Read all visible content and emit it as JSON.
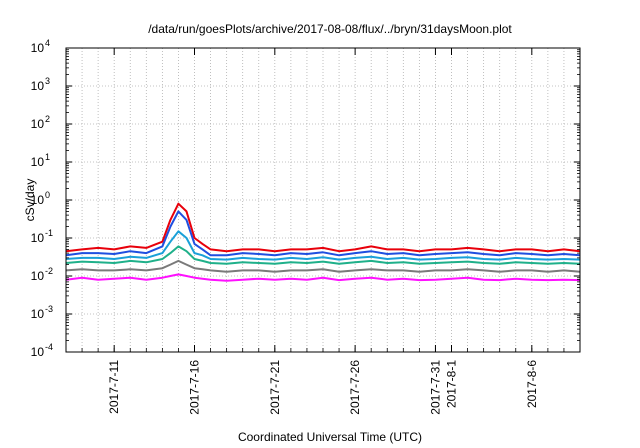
{
  "chart_data": {
    "type": "line",
    "title": "/data/run/goesPlots/archive/2017-08-08/flux/../bryn/31daysMoon.plot",
    "xlabel": "Coordinated Universal Time (UTC)",
    "ylabel": "cSv/day",
    "y_scale": "log",
    "ylim": [
      0.0001,
      10000
    ],
    "y_ticks": [
      {
        "base": "10",
        "exp": "-4",
        "value": 0.0001
      },
      {
        "base": "10",
        "exp": "-3",
        "value": 0.001
      },
      {
        "base": "10",
        "exp": "-2",
        "value": 0.01
      },
      {
        "base": "10",
        "exp": "-1",
        "value": 0.1
      },
      {
        "base": "10",
        "exp": "0",
        "value": 1
      },
      {
        "base": "10",
        "exp": "1",
        "value": 10
      },
      {
        "base": "10",
        "exp": "2",
        "value": 100
      },
      {
        "base": "10",
        "exp": "3",
        "value": 1000
      },
      {
        "base": "10",
        "exp": "4",
        "value": 10000
      }
    ],
    "xlim": [
      "2017-07-08",
      "2017-08-09"
    ],
    "x_ticks": [
      {
        "label": "2017-7-11",
        "date": "2017-07-11"
      },
      {
        "label": "2017-7-16",
        "date": "2017-07-16"
      },
      {
        "label": "2017-7-21",
        "date": "2017-07-21"
      },
      {
        "label": "2017-7-26",
        "date": "2017-07-26"
      },
      {
        "label": "2017-7-31",
        "date": "2017-07-31"
      },
      {
        "label": "2017-8-1",
        "date": "2017-08-01"
      },
      {
        "label": "2017-8-6",
        "date": "2017-08-06"
      }
    ],
    "grid": true,
    "legend": "none",
    "series": [
      {
        "color": "#e8000b",
        "values": [
          [
            "2017-07-08",
            0.045
          ],
          [
            "2017-07-09",
            0.05
          ],
          [
            "2017-07-10",
            0.055
          ],
          [
            "2017-07-11",
            0.05
          ],
          [
            "2017-07-12",
            0.06
          ],
          [
            "2017-07-13",
            0.055
          ],
          [
            "2017-07-14",
            0.08
          ],
          [
            "2017-07-14T12:00",
            0.3
          ],
          [
            "2017-07-15",
            0.8
          ],
          [
            "2017-07-15T12:00",
            0.5
          ],
          [
            "2017-07-16",
            0.1
          ],
          [
            "2017-07-16T12:00",
            0.07
          ],
          [
            "2017-07-17",
            0.05
          ],
          [
            "2017-07-18",
            0.045
          ],
          [
            "2017-07-19",
            0.05
          ],
          [
            "2017-07-20",
            0.05
          ],
          [
            "2017-07-21",
            0.045
          ],
          [
            "2017-07-22",
            0.05
          ],
          [
            "2017-07-23",
            0.05
          ],
          [
            "2017-07-24",
            0.055
          ],
          [
            "2017-07-25",
            0.045
          ],
          [
            "2017-07-26",
            0.05
          ],
          [
            "2017-07-27",
            0.06
          ],
          [
            "2017-07-28",
            0.05
          ],
          [
            "2017-07-29",
            0.05
          ],
          [
            "2017-07-30",
            0.045
          ],
          [
            "2017-07-31",
            0.05
          ],
          [
            "2017-08-01",
            0.05
          ],
          [
            "2017-08-02",
            0.055
          ],
          [
            "2017-08-03",
            0.05
          ],
          [
            "2017-08-04",
            0.045
          ],
          [
            "2017-08-05",
            0.05
          ],
          [
            "2017-08-06",
            0.05
          ],
          [
            "2017-08-07",
            0.045
          ],
          [
            "2017-08-08",
            0.05
          ],
          [
            "2017-08-09",
            0.045
          ]
        ]
      },
      {
        "color": "#1f4fe0",
        "values": [
          [
            "2017-07-08",
            0.035
          ],
          [
            "2017-07-09",
            0.04
          ],
          [
            "2017-07-10",
            0.04
          ],
          [
            "2017-07-11",
            0.038
          ],
          [
            "2017-07-12",
            0.045
          ],
          [
            "2017-07-13",
            0.04
          ],
          [
            "2017-07-14",
            0.06
          ],
          [
            "2017-07-14T12:00",
            0.2
          ],
          [
            "2017-07-15",
            0.5
          ],
          [
            "2017-07-15T12:00",
            0.3
          ],
          [
            "2017-07-16",
            0.07
          ],
          [
            "2017-07-16T12:00",
            0.05
          ],
          [
            "2017-07-17",
            0.035
          ],
          [
            "2017-07-18",
            0.035
          ],
          [
            "2017-07-19",
            0.04
          ],
          [
            "2017-07-20",
            0.038
          ],
          [
            "2017-07-21",
            0.035
          ],
          [
            "2017-07-22",
            0.04
          ],
          [
            "2017-07-23",
            0.038
          ],
          [
            "2017-07-24",
            0.042
          ],
          [
            "2017-07-25",
            0.035
          ],
          [
            "2017-07-26",
            0.04
          ],
          [
            "2017-07-27",
            0.045
          ],
          [
            "2017-07-28",
            0.038
          ],
          [
            "2017-07-29",
            0.04
          ],
          [
            "2017-07-30",
            0.035
          ],
          [
            "2017-07-31",
            0.038
          ],
          [
            "2017-08-01",
            0.04
          ],
          [
            "2017-08-02",
            0.042
          ],
          [
            "2017-08-03",
            0.038
          ],
          [
            "2017-08-04",
            0.035
          ],
          [
            "2017-08-05",
            0.04
          ],
          [
            "2017-08-06",
            0.038
          ],
          [
            "2017-08-07",
            0.035
          ],
          [
            "2017-08-08",
            0.038
          ],
          [
            "2017-08-09",
            0.035
          ]
        ]
      },
      {
        "color": "#1aa0d8",
        "values": [
          [
            "2017-07-08",
            0.028
          ],
          [
            "2017-07-09",
            0.03
          ],
          [
            "2017-07-10",
            0.03
          ],
          [
            "2017-07-11",
            0.028
          ],
          [
            "2017-07-12",
            0.032
          ],
          [
            "2017-07-13",
            0.03
          ],
          [
            "2017-07-14",
            0.04
          ],
          [
            "2017-07-14T12:00",
            0.08
          ],
          [
            "2017-07-15",
            0.15
          ],
          [
            "2017-07-15T12:00",
            0.1
          ],
          [
            "2017-07-16",
            0.04
          ],
          [
            "2017-07-16T12:00",
            0.035
          ],
          [
            "2017-07-17",
            0.028
          ],
          [
            "2017-07-18",
            0.027
          ],
          [
            "2017-07-19",
            0.03
          ],
          [
            "2017-07-20",
            0.028
          ],
          [
            "2017-07-21",
            0.027
          ],
          [
            "2017-07-22",
            0.03
          ],
          [
            "2017-07-23",
            0.028
          ],
          [
            "2017-07-24",
            0.031
          ],
          [
            "2017-07-25",
            0.027
          ],
          [
            "2017-07-26",
            0.03
          ],
          [
            "2017-07-27",
            0.032
          ],
          [
            "2017-07-28",
            0.028
          ],
          [
            "2017-07-29",
            0.03
          ],
          [
            "2017-07-30",
            0.027
          ],
          [
            "2017-07-31",
            0.028
          ],
          [
            "2017-08-01",
            0.03
          ],
          [
            "2017-08-02",
            0.031
          ],
          [
            "2017-08-03",
            0.028
          ],
          [
            "2017-08-04",
            0.027
          ],
          [
            "2017-08-05",
            0.03
          ],
          [
            "2017-08-06",
            0.028
          ],
          [
            "2017-08-07",
            0.027
          ],
          [
            "2017-08-08",
            0.028
          ],
          [
            "2017-08-09",
            0.027
          ]
        ]
      },
      {
        "color": "#1fb08a",
        "values": [
          [
            "2017-07-08",
            0.022
          ],
          [
            "2017-07-09",
            0.024
          ],
          [
            "2017-07-10",
            0.023
          ],
          [
            "2017-07-11",
            0.022
          ],
          [
            "2017-07-12",
            0.025
          ],
          [
            "2017-07-13",
            0.023
          ],
          [
            "2017-07-14",
            0.028
          ],
          [
            "2017-07-14T12:00",
            0.04
          ],
          [
            "2017-07-15",
            0.06
          ],
          [
            "2017-07-15T12:00",
            0.045
          ],
          [
            "2017-07-16",
            0.028
          ],
          [
            "2017-07-16T12:00",
            0.025
          ],
          [
            "2017-07-17",
            0.022
          ],
          [
            "2017-07-18",
            0.021
          ],
          [
            "2017-07-19",
            0.023
          ],
          [
            "2017-07-20",
            0.022
          ],
          [
            "2017-07-21",
            0.021
          ],
          [
            "2017-07-22",
            0.023
          ],
          [
            "2017-07-23",
            0.022
          ],
          [
            "2017-07-24",
            0.024
          ],
          [
            "2017-07-25",
            0.021
          ],
          [
            "2017-07-26",
            0.023
          ],
          [
            "2017-07-27",
            0.025
          ],
          [
            "2017-07-28",
            0.022
          ],
          [
            "2017-07-29",
            0.023
          ],
          [
            "2017-07-30",
            0.021
          ],
          [
            "2017-07-31",
            0.022
          ],
          [
            "2017-08-01",
            0.023
          ],
          [
            "2017-08-02",
            0.024
          ],
          [
            "2017-08-03",
            0.022
          ],
          [
            "2017-08-04",
            0.021
          ],
          [
            "2017-08-05",
            0.023
          ],
          [
            "2017-08-06",
            0.022
          ],
          [
            "2017-08-07",
            0.021
          ],
          [
            "2017-08-08",
            0.022
          ],
          [
            "2017-08-09",
            0.021
          ]
        ]
      },
      {
        "color": "#7a7a7a",
        "values": [
          [
            "2017-07-08",
            0.014
          ],
          [
            "2017-07-09",
            0.015
          ],
          [
            "2017-07-10",
            0.014
          ],
          [
            "2017-07-11",
            0.014
          ],
          [
            "2017-07-12",
            0.015
          ],
          [
            "2017-07-13",
            0.014
          ],
          [
            "2017-07-14",
            0.016
          ],
          [
            "2017-07-14T12:00",
            0.02
          ],
          [
            "2017-07-15",
            0.025
          ],
          [
            "2017-07-15T12:00",
            0.02
          ],
          [
            "2017-07-16",
            0.016
          ],
          [
            "2017-07-16T12:00",
            0.015
          ],
          [
            "2017-07-17",
            0.014
          ],
          [
            "2017-07-18",
            0.013
          ],
          [
            "2017-07-19",
            0.014
          ],
          [
            "2017-07-20",
            0.014
          ],
          [
            "2017-07-21",
            0.013
          ],
          [
            "2017-07-22",
            0.014
          ],
          [
            "2017-07-23",
            0.014
          ],
          [
            "2017-07-24",
            0.015
          ],
          [
            "2017-07-25",
            0.013
          ],
          [
            "2017-07-26",
            0.014
          ],
          [
            "2017-07-27",
            0.015
          ],
          [
            "2017-07-28",
            0.014
          ],
          [
            "2017-07-29",
            0.014
          ],
          [
            "2017-07-30",
            0.013
          ],
          [
            "2017-07-31",
            0.014
          ],
          [
            "2017-08-01",
            0.014
          ],
          [
            "2017-08-02",
            0.015
          ],
          [
            "2017-08-03",
            0.014
          ],
          [
            "2017-08-04",
            0.013
          ],
          [
            "2017-08-05",
            0.014
          ],
          [
            "2017-08-06",
            0.014
          ],
          [
            "2017-08-07",
            0.013
          ],
          [
            "2017-08-08",
            0.014
          ],
          [
            "2017-08-09",
            0.013
          ]
        ]
      },
      {
        "color": "#ff10ff",
        "values": [
          [
            "2017-07-08",
            0.008
          ],
          [
            "2017-07-09",
            0.009
          ],
          [
            "2017-07-10",
            0.008
          ],
          [
            "2017-07-11",
            0.0085
          ],
          [
            "2017-07-12",
            0.009
          ],
          [
            "2017-07-13",
            0.008
          ],
          [
            "2017-07-14",
            0.009
          ],
          [
            "2017-07-14T12:00",
            0.01
          ],
          [
            "2017-07-15",
            0.011
          ],
          [
            "2017-07-15T12:00",
            0.01
          ],
          [
            "2017-07-16",
            0.009
          ],
          [
            "2017-07-16T12:00",
            0.0085
          ],
          [
            "2017-07-17",
            0.008
          ],
          [
            "2017-07-18",
            0.0075
          ],
          [
            "2017-07-19",
            0.008
          ],
          [
            "2017-07-20",
            0.0085
          ],
          [
            "2017-07-21",
            0.008
          ],
          [
            "2017-07-22",
            0.0085
          ],
          [
            "2017-07-23",
            0.008
          ],
          [
            "2017-07-24",
            0.009
          ],
          [
            "2017-07-25",
            0.0078
          ],
          [
            "2017-07-26",
            0.0085
          ],
          [
            "2017-07-27",
            0.009
          ],
          [
            "2017-07-28",
            0.008
          ],
          [
            "2017-07-29",
            0.0085
          ],
          [
            "2017-07-30",
            0.0078
          ],
          [
            "2017-07-31",
            0.008
          ],
          [
            "2017-08-01",
            0.0085
          ],
          [
            "2017-08-02",
            0.009
          ],
          [
            "2017-08-03",
            0.008
          ],
          [
            "2017-08-04",
            0.0078
          ],
          [
            "2017-08-05",
            0.0085
          ],
          [
            "2017-08-06",
            0.008
          ],
          [
            "2017-08-07",
            0.0078
          ],
          [
            "2017-08-08",
            0.008
          ],
          [
            "2017-08-09",
            0.0078
          ]
        ]
      }
    ]
  }
}
